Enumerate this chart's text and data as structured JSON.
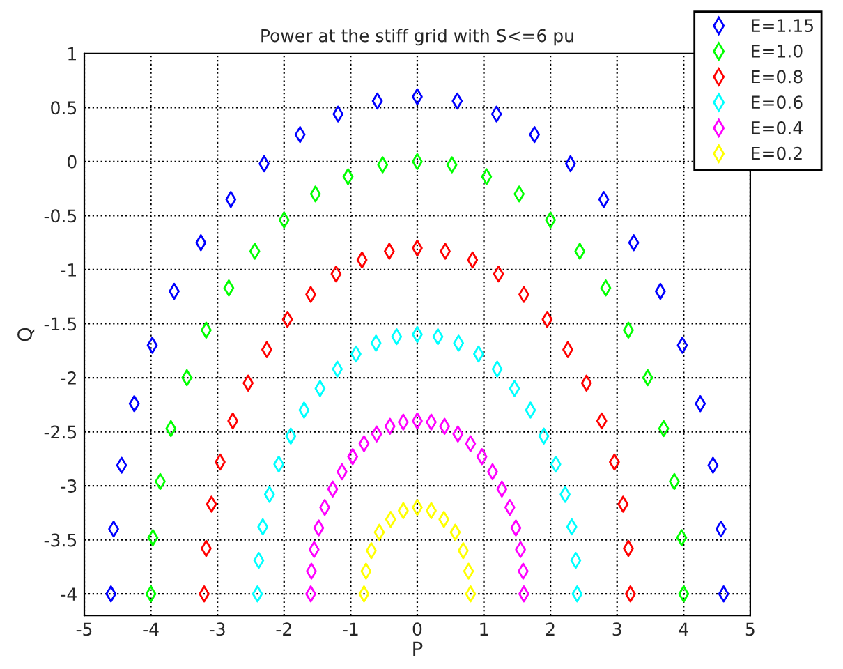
{
  "chart_data": {
    "type": "scatter",
    "title": "Power at the stiff grid with S<=6 pu",
    "xlabel": "P",
    "ylabel": "Q",
    "x": [
      4.6,
      4.56,
      4.44,
      4.25,
      3.98,
      3.65,
      3.25,
      2.8,
      2.3,
      1.76,
      1.19,
      0.6,
      0,
      -0.6,
      -1.19,
      -1.76,
      -2.3,
      -2.8,
      -3.25,
      -3.65,
      -3.98,
      -4.25,
      -4.44,
      -4.56,
      -4.6
    ],
    "series": [
      {
        "name": "E=1.15",
        "color": "#0000ff",
        "values": [
          -4,
          -3.4,
          -2.81,
          -2.24,
          -1.7,
          -1.2,
          -0.75,
          -0.35,
          -0.02,
          0.25,
          0.44,
          0.56,
          0.6,
          0.56,
          0.44,
          0.25,
          -0.02,
          -0.35,
          -0.75,
          -1.2,
          -1.7,
          -2.24,
          -2.81,
          -3.4,
          -4
        ]
      },
      {
        "name": "E=1.0",
        "color": "#00ff00",
        "x": [
          4,
          3.97,
          3.86,
          3.7,
          3.46,
          3.17,
          2.83,
          2.44,
          2,
          1.53,
          1.04,
          0.52,
          0,
          -0.52,
          -1.04,
          -1.53,
          -2,
          -2.44,
          -2.83,
          -3.17,
          -3.46,
          -3.7,
          -3.86,
          -3.97,
          -4
        ],
        "values": [
          -4,
          -3.48,
          -2.96,
          -2.47,
          -2,
          -1.56,
          -1.17,
          -0.83,
          -0.54,
          -0.3,
          -0.14,
          -0.03,
          0,
          -0.03,
          -0.14,
          -0.3,
          -0.54,
          -0.83,
          -1.17,
          -1.56,
          -2,
          -2.47,
          -2.96,
          -3.48,
          -4
        ]
      },
      {
        "name": "E=0.8",
        "color": "#ff0000",
        "x": [
          3.2,
          3.17,
          3.09,
          2.96,
          2.77,
          2.54,
          2.26,
          1.95,
          1.6,
          1.22,
          0.83,
          0.42,
          0,
          -0.42,
          -0.83,
          -1.22,
          -1.6,
          -1.95,
          -2.26,
          -2.54,
          -2.77,
          -2.96,
          -3.09,
          -3.17,
          -3.2
        ],
        "values": [
          -4,
          -3.58,
          -3.17,
          -2.78,
          -2.4,
          -2.05,
          -1.74,
          -1.46,
          -1.23,
          -1.04,
          -0.91,
          -0.83,
          -0.8,
          -0.83,
          -0.91,
          -1.04,
          -1.23,
          -1.46,
          -1.74,
          -2.05,
          -2.4,
          -2.78,
          -3.17,
          -3.58,
          -4
        ]
      },
      {
        "name": "E=0.6",
        "color": "#00ffff",
        "x": [
          2.4,
          2.38,
          2.32,
          2.22,
          2.08,
          1.9,
          1.7,
          1.46,
          1.2,
          0.92,
          0.62,
          0.31,
          0,
          -0.31,
          -0.62,
          -0.92,
          -1.2,
          -1.46,
          -1.7,
          -1.9,
          -2.08,
          -2.22,
          -2.32,
          -2.38,
          -2.4
        ],
        "values": [
          -4,
          -3.69,
          -3.38,
          -3.08,
          -2.8,
          -2.54,
          -2.3,
          -2.1,
          -1.92,
          -1.78,
          -1.68,
          -1.62,
          -1.6,
          -1.62,
          -1.68,
          -1.78,
          -1.92,
          -2.1,
          -2.3,
          -2.54,
          -2.8,
          -3.08,
          -3.38,
          -3.69,
          -4
        ]
      },
      {
        "name": "E=0.4",
        "color": "#ff00ff",
        "x": [
          1.6,
          1.59,
          1.55,
          1.48,
          1.39,
          1.27,
          1.13,
          0.97,
          0.8,
          0.61,
          0.41,
          0.21,
          0,
          -0.21,
          -0.41,
          -0.61,
          -0.8,
          -0.97,
          -1.13,
          -1.27,
          -1.39,
          -1.48,
          -1.55,
          -1.59,
          -1.6
        ],
        "values": [
          -4,
          -3.79,
          -3.59,
          -3.39,
          -3.2,
          -3.03,
          -2.87,
          -2.73,
          -2.61,
          -2.52,
          -2.45,
          -2.41,
          -2.4,
          -2.41,
          -2.45,
          -2.52,
          -2.61,
          -2.73,
          -2.87,
          -3.03,
          -3.2,
          -3.39,
          -3.59,
          -3.79,
          -4
        ]
      },
      {
        "name": "E=0.2",
        "color": "#ffff00",
        "x": [
          0.8,
          0.77,
          0.69,
          0.57,
          0.4,
          0.21,
          0,
          -0.21,
          -0.4,
          -0.57,
          -0.69,
          -0.77,
          -0.8
        ],
        "values": [
          -4,
          -3.79,
          -3.6,
          -3.43,
          -3.31,
          -3.23,
          -3.2,
          -3.23,
          -3.31,
          -3.43,
          -3.6,
          -3.79,
          -4
        ]
      }
    ],
    "xlim": [
      -5,
      5
    ],
    "xticks": [
      -5,
      -4,
      -3,
      -2,
      -1,
      0,
      1,
      2,
      3,
      4,
      5
    ],
    "ylim": [
      -4.2,
      1
    ],
    "yticks": [
      -4,
      -3.5,
      -3,
      -2.5,
      -2,
      -1.5,
      -1,
      -0.5,
      0,
      0.5,
      1
    ],
    "grid": true,
    "legend": "top right",
    "marker": "diamond"
  }
}
